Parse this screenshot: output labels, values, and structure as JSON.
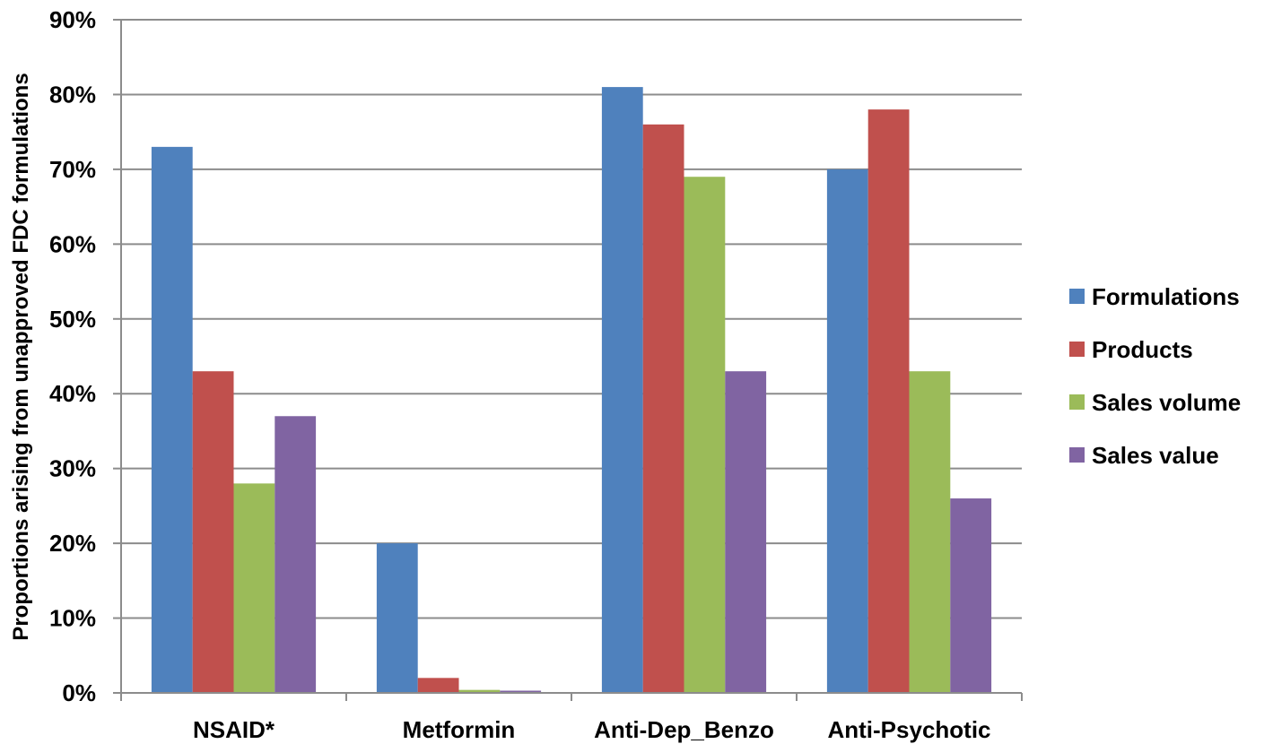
{
  "chart_data": {
    "type": "bar",
    "title": "",
    "xlabel": "",
    "ylabel": "Proportions arising from unapproved FDC formulations",
    "ylim": [
      0,
      90
    ],
    "yticks": [
      0,
      10,
      20,
      30,
      40,
      50,
      60,
      70,
      80,
      90
    ],
    "ytick_labels": [
      "0%",
      "10%",
      "20%",
      "30%",
      "40%",
      "50%",
      "60%",
      "70%",
      "80%",
      "90%"
    ],
    "grid": true,
    "legend_position": "right",
    "categories": [
      "NSAID*",
      "Metformin",
      "Anti-Dep_Benzo",
      "Anti-Psychotic"
    ],
    "series": [
      {
        "name": "Formulations",
        "color": "#4F81BD",
        "values": [
          73,
          20,
          81,
          70
        ]
      },
      {
        "name": "Products",
        "color": "#C0504D",
        "values": [
          43,
          2,
          76,
          78
        ]
      },
      {
        "name": "Sales volume",
        "color": "#9BBB59",
        "values": [
          28,
          0.4,
          69,
          43
        ]
      },
      {
        "name": "Sales value",
        "color": "#8064A2",
        "values": [
          37,
          0.3,
          43,
          26
        ]
      }
    ]
  }
}
